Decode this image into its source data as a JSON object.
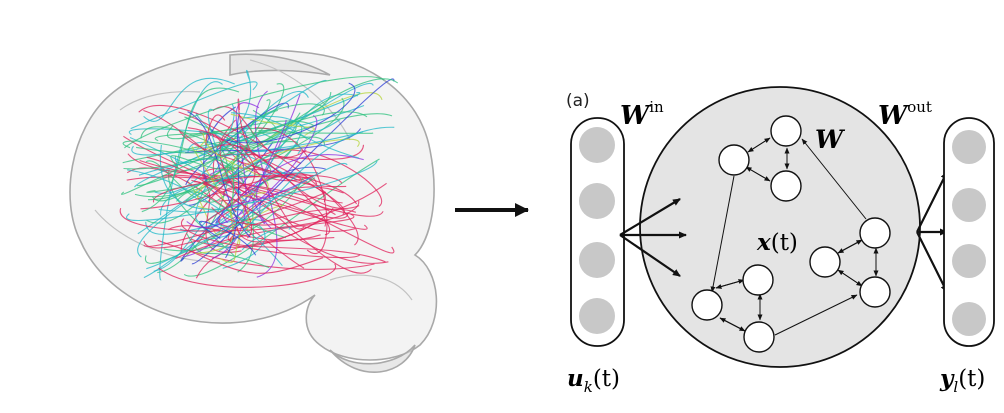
{
  "figure": {
    "brain_image": {
      "description_icon": "brain-connectome-icon",
      "fiber_colors": [
        "#2a3bd6",
        "#8a2be2",
        "#e0205a",
        "#2ec27e",
        "#20b8c8",
        "#b6d43a"
      ]
    },
    "transition_arrow": {
      "icon": "right-arrow-icon"
    },
    "reservoir": {
      "panel_label": "(a)",
      "input_weight_label": {
        "base": "W",
        "sup": "in"
      },
      "output_weight_label": {
        "base": "W",
        "sup": "out"
      },
      "recurrent_weight_label": "W",
      "state_label": {
        "base": "x",
        "arg": "(t)"
      },
      "input_label": {
        "base": "u",
        "sub": "k",
        "arg": "(t)"
      },
      "output_label": {
        "base": "y",
        "sub": "l",
        "arg": "(t)"
      },
      "input_units": 4,
      "output_units": 4,
      "colors": {
        "unit_fill": "#c8c8c8",
        "reservoir_fill": "#e4e4e4",
        "stroke": "#111111"
      }
    }
  }
}
